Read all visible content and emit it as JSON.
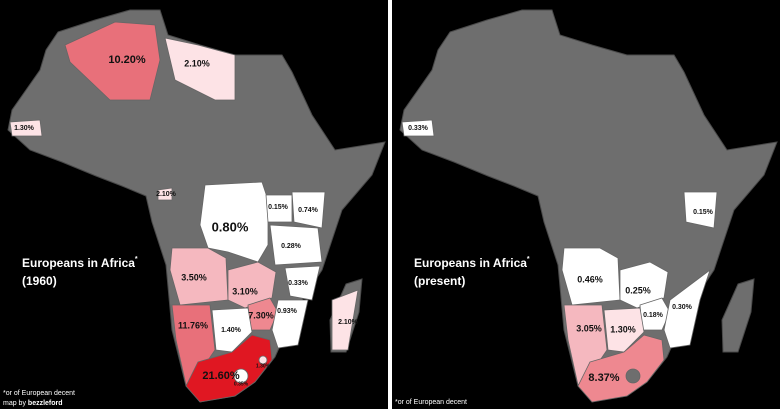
{
  "panels": [
    {
      "title": "Europeans in Africa",
      "title_mark": "*",
      "subtitle": "(1960)",
      "footnote": "*or of European decent",
      "credit_prefix": "map by",
      "credit_name": "bezzleford",
      "labels": [
        "10.20%",
        "2.10%",
        "1.30%",
        "2.10%",
        "0.80%",
        "0.15%",
        "0.74%",
        "0.28%",
        "3.50%",
        "3.10%",
        "0.33%",
        "7.30%",
        "0.93%",
        "2.10%",
        "11.76%",
        "1.40%",
        "21.60%",
        "1.30%",
        "0.35%"
      ]
    },
    {
      "title": "Europeans in Africa",
      "title_mark": "*",
      "subtitle": "(present)",
      "footnote": "*or of European decent",
      "labels": [
        "0.33%",
        "0.15%",
        "0.46%",
        "0.25%",
        "0.18%",
        "0.30%",
        "3.05%",
        "1.30%",
        "8.37%"
      ]
    }
  ]
}
